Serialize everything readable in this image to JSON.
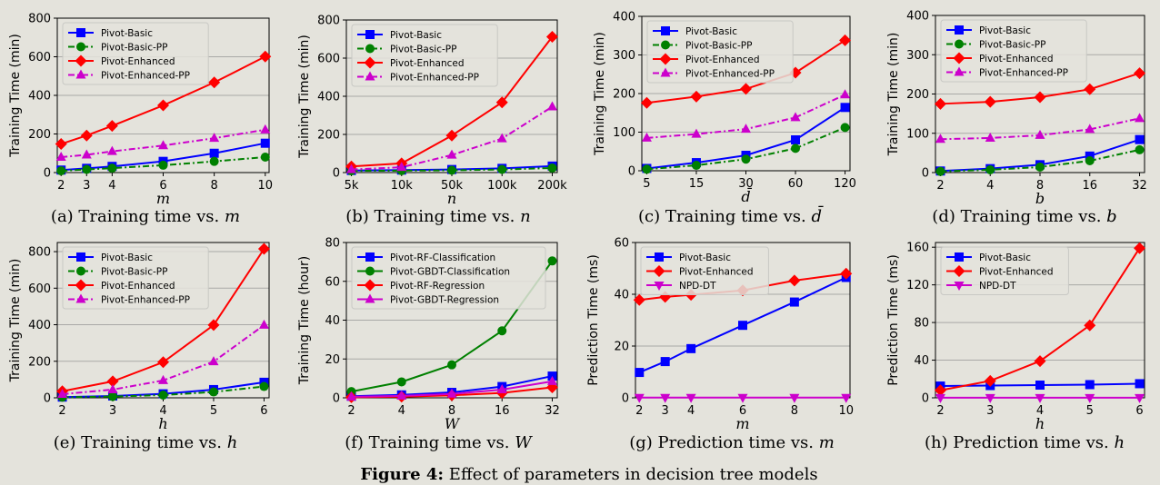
{
  "figure_caption": {
    "label": "Figure 4:",
    "text": "Effect of parameters in decision tree models"
  },
  "chart_data": [
    {
      "id": "a",
      "type": "line",
      "caption": "(a) Training time vs. m",
      "caption_prefix": "(a) Training time vs. ",
      "caption_var": "m",
      "xlabel": "m",
      "ylabel": "Training Time (min)",
      "categories": [
        "2",
        "3",
        "4",
        "6",
        "8",
        "10"
      ],
      "x": [
        2,
        3,
        4,
        6,
        8,
        10
      ],
      "xscale": "linear",
      "xlim": [
        1.85,
        10.15
      ],
      "ylim": [
        0,
        800
      ],
      "yticks": [
        0,
        200,
        400,
        600,
        800
      ],
      "grid": true,
      "legend_position": "top-left",
      "series": [
        {
          "name": "Pivot-Basic",
          "color": "#0000ff",
          "marker": "square",
          "dashed": false,
          "values": [
            13,
            22,
            32,
            58,
            100,
            152
          ]
        },
        {
          "name": "Pivot-Basic-PP",
          "color": "#008000",
          "marker": "circle",
          "dashed": true,
          "values": [
            9,
            16,
            23,
            38,
            58,
            80
          ]
        },
        {
          "name": "Pivot-Enhanced",
          "color": "#ff0000",
          "marker": "diamond",
          "dashed": false,
          "values": [
            148,
            192,
            242,
            348,
            467,
            601
          ]
        },
        {
          "name": "Pivot-Enhanced-PP",
          "color": "#cc00cc",
          "marker": "triangle",
          "dashed": true,
          "values": [
            80,
            92,
            110,
            140,
            178,
            222
          ]
        }
      ]
    },
    {
      "id": "b",
      "type": "line",
      "caption": "(b) Training time vs. n",
      "caption_prefix": "(b) Training time vs. ",
      "caption_var": "n",
      "xlabel": "n",
      "ylabel": "Training Time (min)",
      "categories": [
        "5k",
        "10k",
        "50k",
        "100k",
        "200k"
      ],
      "x": [
        0,
        1,
        2,
        3,
        4
      ],
      "xscale": "category",
      "xlim": [
        -0.1,
        4.1
      ],
      "ylim": [
        0,
        800
      ],
      "yticks": [
        0,
        200,
        400,
        600,
        800
      ],
      "grid": true,
      "legend_position": "top-left",
      "series": [
        {
          "name": "Pivot-Basic",
          "color": "#0000ff",
          "marker": "square",
          "dashed": false,
          "values": [
            11,
            13,
            16,
            22,
            34
          ]
        },
        {
          "name": "Pivot-Basic-PP",
          "color": "#008000",
          "marker": "circle",
          "dashed": true,
          "values": [
            9,
            10,
            12,
            16,
            24
          ]
        },
        {
          "name": "Pivot-Enhanced",
          "color": "#ff0000",
          "marker": "diamond",
          "dashed": false,
          "values": [
            32,
            48,
            194,
            368,
            712
          ]
        },
        {
          "name": "Pivot-Enhanced-PP",
          "color": "#cc00cc",
          "marker": "triangle",
          "dashed": true,
          "values": [
            16,
            28,
            92,
            178,
            345
          ]
        }
      ]
    },
    {
      "id": "c",
      "type": "line",
      "caption": "(c) Training time vs. d̄",
      "caption_prefix": "(c) Training time vs. ",
      "caption_var": "d̄",
      "xlabel": "d̄",
      "ylabel": "Training Time (min)",
      "categories": [
        "5",
        "15",
        "30",
        "60",
        "120"
      ],
      "x": [
        0,
        1,
        2,
        3,
        4
      ],
      "xscale": "category",
      "xlim": [
        -0.1,
        4.1
      ],
      "ylim": [
        0,
        400
      ],
      "yticks": [
        0,
        100,
        200,
        300,
        400
      ],
      "grid": true,
      "legend_position": "top-left",
      "series": [
        {
          "name": "Pivot-Basic",
          "color": "#0000ff",
          "marker": "square",
          "dashed": false,
          "values": [
            6,
            21,
            40,
            80,
            164
          ]
        },
        {
          "name": "Pivot-Basic-PP",
          "color": "#008000",
          "marker": "circle",
          "dashed": true,
          "values": [
            4,
            14,
            30,
            58,
            112
          ]
        },
        {
          "name": "Pivot-Enhanced",
          "color": "#ff0000",
          "marker": "diamond",
          "dashed": false,
          "values": [
            176,
            192,
            212,
            254,
            338
          ]
        },
        {
          "name": "Pivot-Enhanced-PP",
          "color": "#cc00cc",
          "marker": "triangle",
          "dashed": true,
          "values": [
            85,
            95,
            108,
            138,
            197
          ]
        }
      ]
    },
    {
      "id": "d",
      "type": "line",
      "caption": "(d) Training time vs. b",
      "caption_prefix": "(d) Training time vs. ",
      "caption_var": "b",
      "xlabel": "b",
      "ylabel": "Training Time (min)",
      "categories": [
        "2",
        "4",
        "8",
        "16",
        "32"
      ],
      "x": [
        0,
        1,
        2,
        3,
        4
      ],
      "xscale": "category",
      "xlim": [
        -0.1,
        4.1
      ],
      "ylim": [
        0,
        400
      ],
      "yticks": [
        0,
        100,
        200,
        300,
        400
      ],
      "grid": true,
      "legend_position": "top-left",
      "series": [
        {
          "name": "Pivot-Basic",
          "color": "#0000ff",
          "marker": "square",
          "dashed": false,
          "values": [
            4,
            10,
            20,
            42,
            84
          ]
        },
        {
          "name": "Pivot-Basic-PP",
          "color": "#008000",
          "marker": "circle",
          "dashed": true,
          "values": [
            3,
            7,
            14,
            30,
            58
          ]
        },
        {
          "name": "Pivot-Enhanced",
          "color": "#ff0000",
          "marker": "diamond",
          "dashed": false,
          "values": [
            175,
            180,
            192,
            212,
            253
          ]
        },
        {
          "name": "Pivot-Enhanced-PP",
          "color": "#cc00cc",
          "marker": "triangle",
          "dashed": true,
          "values": [
            85,
            88,
            95,
            110,
            138
          ]
        }
      ]
    },
    {
      "id": "e",
      "type": "line",
      "caption": "(e) Training time vs. h",
      "caption_prefix": "(e) Training time vs. ",
      "caption_var": "h",
      "xlabel": "h",
      "ylabel": "Training Time (min)",
      "categories": [
        "2",
        "3",
        "4",
        "5",
        "6"
      ],
      "x": [
        2,
        3,
        4,
        5,
        6
      ],
      "xscale": "linear",
      "xlim": [
        1.9,
        6.1
      ],
      "ylim": [
        0,
        850
      ],
      "yticks": [
        0,
        200,
        400,
        600,
        800
      ],
      "grid": true,
      "legend_position": "top-left",
      "series": [
        {
          "name": "Pivot-Basic",
          "color": "#0000ff",
          "marker": "square",
          "dashed": false,
          "values": [
            4,
            10,
            22,
            45,
            85
          ]
        },
        {
          "name": "Pivot-Basic-PP",
          "color": "#008000",
          "marker": "circle",
          "dashed": true,
          "values": [
            3,
            7,
            15,
            32,
            62
          ]
        },
        {
          "name": "Pivot-Enhanced",
          "color": "#ff0000",
          "marker": "diamond",
          "dashed": false,
          "values": [
            36,
            90,
            195,
            398,
            815
          ]
        },
        {
          "name": "Pivot-Enhanced-PP",
          "color": "#cc00cc",
          "marker": "triangle",
          "dashed": true,
          "values": [
            20,
            45,
            95,
            198,
            398
          ]
        }
      ]
    },
    {
      "id": "f",
      "type": "line",
      "caption": "(f) Training time vs. W",
      "caption_prefix": "(f) Training time vs. ",
      "caption_var": "W",
      "xlabel": "W",
      "ylabel": "Training Time (hour)",
      "categories": [
        "2",
        "4",
        "8",
        "16",
        "32"
      ],
      "x": [
        0,
        1,
        2,
        3,
        4
      ],
      "xscale": "category",
      "xlim": [
        -0.1,
        4.1
      ],
      "ylim": [
        0,
        80
      ],
      "yticks": [
        0,
        20,
        40,
        60,
        80
      ],
      "grid": true,
      "legend_position": "top-left",
      "series": [
        {
          "name": "Pivot-RF-Classification",
          "color": "#0000ff",
          "marker": "square",
          "dashed": false,
          "values": [
            0.8,
            1.5,
            2.8,
            5.8,
            11.2
          ]
        },
        {
          "name": "Pivot-GBDT-Classification",
          "color": "#008000",
          "marker": "circle",
          "dashed": false,
          "values": [
            3.2,
            8.2,
            17,
            34.5,
            70.5
          ]
        },
        {
          "name": "Pivot-RF-Regression",
          "color": "#ff0000",
          "marker": "diamond",
          "dashed": false,
          "values": [
            0.3,
            0.6,
            1.3,
            2.5,
            5.4
          ]
        },
        {
          "name": "Pivot-GBDT-Regression",
          "color": "#cc00cc",
          "marker": "triangle",
          "dashed": false,
          "values": [
            0.5,
            1,
            2,
            4.2,
            8.5
          ]
        }
      ]
    },
    {
      "id": "g",
      "type": "line",
      "caption": "(g) Prediction time vs. m",
      "caption_prefix": "(g) Prediction time vs. ",
      "caption_var": "m",
      "xlabel": "m",
      "ylabel": "Prediction Time (ms)",
      "categories": [
        "2",
        "3",
        "4",
        "6",
        "8",
        "10"
      ],
      "x": [
        2,
        3,
        4,
        6,
        8,
        10
      ],
      "xscale": "linear",
      "xlim": [
        1.85,
        10.15
      ],
      "ylim": [
        0,
        60
      ],
      "yticks": [
        0,
        20,
        40,
        60
      ],
      "grid": true,
      "legend_position": "top-left",
      "series": [
        {
          "name": "Pivot-Basic",
          "color": "#0000ff",
          "marker": "square",
          "dashed": false,
          "values": [
            9.8,
            14,
            19,
            28,
            37,
            46.5
          ]
        },
        {
          "name": "Pivot-Enhanced",
          "color": "#ff0000",
          "marker": "diamond",
          "dashed": false,
          "values": [
            37.8,
            39,
            39.8,
            41.5,
            45.3,
            48
          ]
        },
        {
          "name": "NPD-DT",
          "color": "#cc00cc",
          "marker": "triangle-down",
          "dashed": false,
          "values": [
            0.1,
            0.1,
            0.1,
            0.1,
            0.1,
            0.1
          ]
        }
      ]
    },
    {
      "id": "h",
      "type": "line",
      "caption": "(h) Prediction time vs. h",
      "caption_prefix": "(h) Prediction time vs. ",
      "caption_var": "h",
      "xlabel": "h",
      "ylabel": "Prediction Time (ms)",
      "categories": [
        "2",
        "3",
        "4",
        "5",
        "6"
      ],
      "x": [
        2,
        3,
        4,
        5,
        6
      ],
      "xscale": "linear",
      "xlim": [
        1.9,
        6.1
      ],
      "ylim": [
        0,
        165
      ],
      "yticks": [
        0,
        40,
        80,
        120,
        160
      ],
      "grid": true,
      "legend_position": "top-left",
      "series": [
        {
          "name": "Pivot-Basic",
          "color": "#0000ff",
          "marker": "square",
          "dashed": false,
          "values": [
            12.5,
            13,
            13.5,
            14,
            15
          ]
        },
        {
          "name": "Pivot-Enhanced",
          "color": "#ff0000",
          "marker": "diamond",
          "dashed": false,
          "values": [
            8,
            18,
            39,
            77,
            159
          ]
        },
        {
          "name": "NPD-DT",
          "color": "#cc00cc",
          "marker": "triangle-down",
          "dashed": false,
          "values": [
            0.1,
            0.1,
            0.1,
            0.1,
            0.1
          ]
        }
      ]
    }
  ]
}
